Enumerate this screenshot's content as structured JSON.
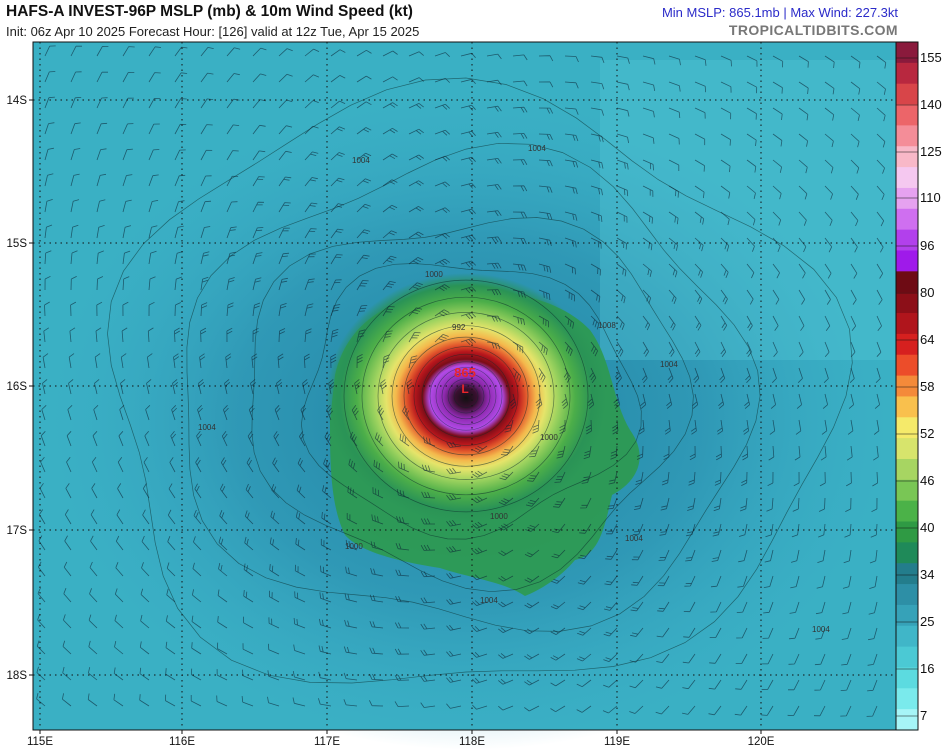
{
  "header": {
    "title": "HAFS-A INVEST-96P MSLP (mb) & 10m Wind Speed (kt)",
    "subtitle": "Init: 06z Apr 10 2025   Forecast Hour: [126]   valid at 12z Tue, Apr 15 2025",
    "stats": "Min MSLP: 865.1mb | Max Wind: 227.3kt",
    "site": "TROPICALTIDBITS.COM"
  },
  "colors": {
    "title_text": "#111111",
    "stats_text": "#2b2bc9",
    "site_text": "#777777",
    "center_label": "#e8262b"
  },
  "map": {
    "lat_labels": [
      "14S",
      "15S",
      "16S",
      "17S",
      "18S"
    ],
    "lon_labels": [
      "115E",
      "116E",
      "117E",
      "118E",
      "119E",
      "120E"
    ],
    "center_pressure_label": "865",
    "center_symbol": "L",
    "isobar_labels": [
      "1004",
      "1004",
      "1000",
      "1004",
      "1004",
      "1004",
      "1000",
      "1000",
      "1004",
      "1004",
      "1008",
      "992",
      "1000"
    ]
  },
  "colorbar": {
    "labels": [
      "155",
      "140",
      "125",
      "110",
      "96",
      "80",
      "64",
      "58",
      "52",
      "46",
      "40",
      "34",
      "25",
      "16",
      "7"
    ],
    "colors": [
      "#8a1a3c",
      "#b8283f",
      "#d84549",
      "#ec6569",
      "#f48d98",
      "#f8b8c8",
      "#f5c8f0",
      "#e6a2f0",
      "#cf6ff0",
      "#b240ec",
      "#9f1aea",
      "#6e0b14",
      "#8c0f18",
      "#b0151c",
      "#d6201f",
      "#ec4d2a",
      "#f48a3a",
      "#f9c04d",
      "#f5ea6a",
      "#d7e46c",
      "#a7d562",
      "#79c655",
      "#4bb248",
      "#2f9a44",
      "#1f8a59",
      "#237d8c",
      "#2d8fa6",
      "#36a2b8",
      "#40b6c8",
      "#4bc9d4",
      "#5cdbe0",
      "#7aeaec",
      "#a6f5f7"
    ]
  }
}
